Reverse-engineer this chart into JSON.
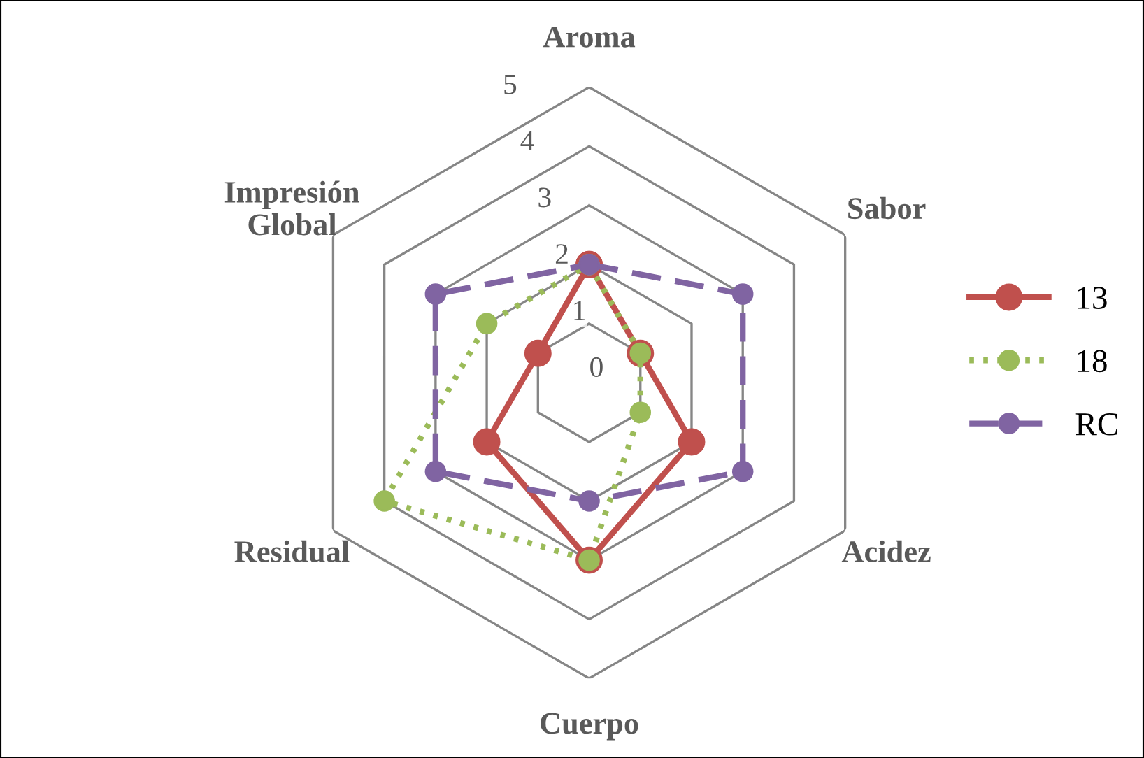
{
  "chart_data": {
    "type": "radar",
    "categories": [
      "Aroma",
      "Sabor",
      "Acidez",
      "Cuerpo",
      "Residual",
      "Impresión\nGlobal"
    ],
    "series": [
      {
        "name": "13",
        "color": "#c0504d",
        "line_style": "solid",
        "values": [
          2,
          1,
          2,
          3,
          2,
          1
        ]
      },
      {
        "name": "18",
        "color": "#9bbb59",
        "line_style": "dotted",
        "values": [
          2,
          1,
          1,
          3,
          4,
          2
        ]
      },
      {
        "name": "RC",
        "color": "#8064a2",
        "line_style": "dashed",
        "values": [
          2,
          3,
          3,
          2,
          3,
          3
        ]
      }
    ],
    "ylim": [
      0,
      5
    ],
    "yticks": [
      0,
      1,
      2,
      3,
      4,
      5
    ],
    "grid": true,
    "marker": "circle",
    "legend": "right"
  }
}
